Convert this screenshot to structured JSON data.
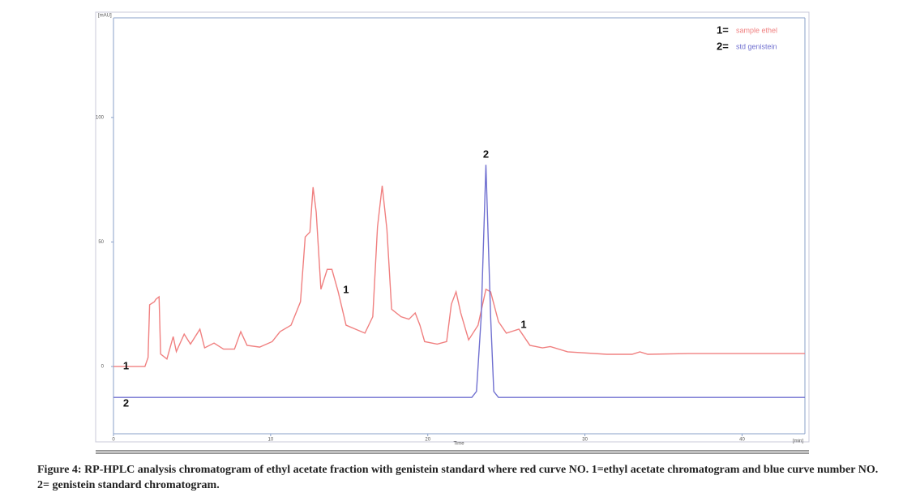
{
  "chart_data": {
    "type": "line",
    "xlabel": "Time",
    "xunit": "[min]",
    "yunit": "[mAU]",
    "xlim": [
      0,
      44
    ],
    "ylim": [
      -27,
      140
    ],
    "xticks": [
      0,
      10,
      20,
      30,
      40
    ],
    "yticks": [
      0,
      50,
      100
    ],
    "grid": false,
    "legend": "upper right",
    "series": [
      {
        "name": "sample ethel",
        "key": "1=",
        "color": "#f08080",
        "x": [
          0,
          2.0,
          2.2,
          2.3,
          2.6,
          2.7,
          2.9,
          3.0,
          3.4,
          3.8,
          4.0,
          4.5,
          4.9,
          5.5,
          5.8,
          6.4,
          7.0,
          7.7,
          8.1,
          8.5,
          9.3,
          10.1,
          10.6,
          11.3,
          11.9,
          12.2,
          12.5,
          12.7,
          12.9,
          13.2,
          13.6,
          13.9,
          14.3,
          14.8,
          15.4,
          16.0,
          16.5,
          16.8,
          17.1,
          17.4,
          17.7,
          18.3,
          18.8,
          19.2,
          19.5,
          19.8,
          20.6,
          21.2,
          21.5,
          21.8,
          22.1,
          22.6,
          23.2,
          23.7,
          24.0,
          24.5,
          25.0,
          25.8,
          26.5,
          27.3,
          27.8,
          28.9,
          31.4,
          33.0,
          33.5,
          34.0,
          36.6,
          44.0
        ],
        "values": [
          0,
          0,
          3.6,
          24.8,
          26,
          27,
          28,
          5,
          3,
          12,
          6,
          13,
          9,
          15,
          7.5,
          9.4,
          7,
          7,
          14,
          8.5,
          7.8,
          10,
          14,
          16.6,
          26,
          52,
          54,
          72,
          62,
          31,
          39,
          39,
          30,
          16.6,
          15,
          13.4,
          20,
          56,
          72.6,
          55,
          23,
          20,
          19,
          21.5,
          16.6,
          10,
          9,
          10,
          25,
          30,
          21.5,
          10.7,
          16.6,
          31,
          30,
          18,
          13.4,
          15,
          8.5,
          7.5,
          8,
          5.9,
          4.9,
          4.9,
          5.9,
          4.9,
          5.2,
          5.2
        ]
      },
      {
        "name": "std genistein",
        "key": "2=",
        "color": "#7070d0",
        "x": [
          0,
          22.8,
          23.1,
          23.4,
          23.7,
          24.0,
          24.2,
          24.5,
          44
        ],
        "values": [
          -12.4,
          -12.4,
          -10,
          20,
          81,
          20,
          -10,
          -12.4,
          -12.4
        ]
      }
    ],
    "annotations": [
      {
        "text": "1",
        "x": 0.8,
        "y": 0
      },
      {
        "text": "2",
        "x": 0.8,
        "y": -15
      },
      {
        "text": "1",
        "x": 14.8,
        "y": 30.6
      },
      {
        "text": "2",
        "x": 23.7,
        "y": 85
      },
      {
        "text": "1",
        "x": 26.1,
        "y": 16.6
      }
    ]
  },
  "caption": "Figure 4: RP-HPLC analysis chromatogram of ethyl acetate fraction with genistein standard where red curve NO. 1=ethyl acetate chromatogram and blue curve number NO. 2= genistein standard chromatogram."
}
